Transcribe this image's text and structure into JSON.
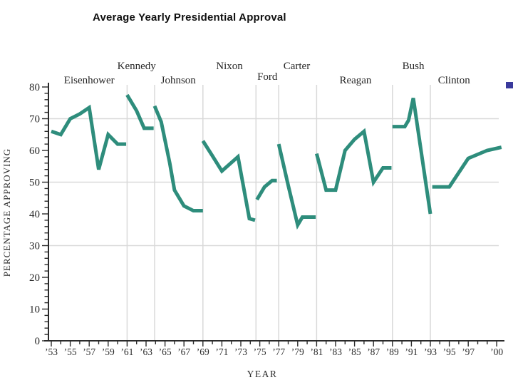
{
  "page": {
    "background": "#ffffff"
  },
  "decoration": {
    "bullet_color": "#3a3a9c"
  },
  "chart_data": {
    "type": "line",
    "title": "Average Yearly Presidential Approval",
    "xlabel": "YEAR",
    "ylabel": "PERCENTAGE APPROVING",
    "ylim": [
      0,
      80
    ],
    "xlim": [
      1953,
      2000.5
    ],
    "y_major_ticks": [
      0,
      10,
      20,
      30,
      40,
      50,
      60,
      70,
      80
    ],
    "y_minor_step": 2,
    "grid_on": true,
    "h_gridlines_at": [
      30,
      50,
      70
    ],
    "v_gridlines_at_years": [
      1961,
      1963.9,
      1969,
      1974.6,
      1977,
      1981,
      1989,
      1993
    ],
    "line_color": "#2e8d7c",
    "grid_color": "#d9d9d9",
    "axis_color": "#2a2a2a",
    "x_ticks": [
      {
        "label": "’53",
        "year": 1953
      },
      {
        "label": "’55",
        "year": 1955
      },
      {
        "label": "’57",
        "year": 1957
      },
      {
        "label": "’59",
        "year": 1959
      },
      {
        "label": "’61",
        "year": 1961
      },
      {
        "label": "’63",
        "year": 1963
      },
      {
        "label": "’65",
        "year": 1965
      },
      {
        "label": "’67",
        "year": 1967
      },
      {
        "label": "’69",
        "year": 1969
      },
      {
        "label": "’71",
        "year": 1971
      },
      {
        "label": "’73",
        "year": 1973
      },
      {
        "label": "’75",
        "year": 1975
      },
      {
        "label": "’77",
        "year": 1977
      },
      {
        "label": "’79",
        "year": 1979
      },
      {
        "label": "’81",
        "year": 1981
      },
      {
        "label": "’83",
        "year": 1983
      },
      {
        "label": "’85",
        "year": 1985
      },
      {
        "label": "’87",
        "year": 1987
      },
      {
        "label": "’89",
        "year": 1989
      },
      {
        "label": "’91",
        "year": 1991
      },
      {
        "label": "’93",
        "year": 1993
      },
      {
        "label": "’95",
        "year": 1995
      },
      {
        "label": "’97",
        "year": 1997
      },
      {
        "label": "’00",
        "year": 2000
      }
    ],
    "series": [
      {
        "name": "Eisenhower",
        "label_row": 2,
        "label_center_year": 1957,
        "label_dy": 0,
        "points": [
          [
            1953,
            66
          ],
          [
            1954,
            65
          ],
          [
            1955,
            70
          ],
          [
            1956,
            71.5
          ],
          [
            1957,
            73.5
          ],
          [
            1958,
            54
          ],
          [
            1959,
            65
          ],
          [
            1960,
            62
          ],
          [
            1960.9,
            62
          ]
        ]
      },
      {
        "name": "Kennedy",
        "label_row": 1,
        "label_center_year": 1962,
        "label_dy": 0,
        "points": [
          [
            1961,
            77.5
          ],
          [
            1962,
            72.5
          ],
          [
            1962.8,
            67
          ],
          [
            1963.8,
            67
          ]
        ]
      },
      {
        "name": "Johnson",
        "label_row": 2,
        "label_center_year": 1966.4,
        "label_dy": 0,
        "points": [
          [
            1963.9,
            74
          ],
          [
            1964.6,
            69
          ],
          [
            1965.5,
            56
          ],
          [
            1966,
            47.5
          ],
          [
            1967,
            42.5
          ],
          [
            1968,
            41
          ],
          [
            1969,
            41
          ]
        ]
      },
      {
        "name": "Nixon",
        "label_row": 1,
        "label_center_year": 1971.8,
        "label_dy": 0,
        "points": [
          [
            1969,
            63
          ],
          [
            1970,
            58.3
          ],
          [
            1971,
            53.5
          ],
          [
            1972.7,
            58
          ],
          [
            1973.9,
            38.5
          ],
          [
            1974.5,
            38
          ]
        ]
      },
      {
        "name": "Ford",
        "label_row": 2,
        "label_center_year": 1975.8,
        "label_dy": -5,
        "points": [
          [
            1974.7,
            44.5
          ],
          [
            1975.5,
            48.5
          ],
          [
            1976.3,
            50.5
          ],
          [
            1976.8,
            50.5
          ]
        ]
      },
      {
        "name": "Carter",
        "label_row": 1,
        "label_center_year": 1978.9,
        "label_dy": 0,
        "points": [
          [
            1977,
            62
          ],
          [
            1978,
            49
          ],
          [
            1979,
            36.5
          ],
          [
            1979.5,
            39
          ],
          [
            1980.9,
            39
          ]
        ]
      },
      {
        "name": "Reagan",
        "label_row": 2,
        "label_center_year": 1985.1,
        "label_dy": 0,
        "points": [
          [
            1981,
            59
          ],
          [
            1982,
            47.5
          ],
          [
            1983,
            47.5
          ],
          [
            1984,
            60
          ],
          [
            1985,
            63.5
          ],
          [
            1986,
            66
          ],
          [
            1987,
            50
          ],
          [
            1988,
            54.5
          ],
          [
            1988.9,
            54.5
          ]
        ]
      },
      {
        "name": "Bush",
        "label_row": 1,
        "label_center_year": 1991.2,
        "label_dy": 0,
        "points": [
          [
            1989,
            67.5
          ],
          [
            1990.3,
            67.5
          ],
          [
            1990.7,
            69.5
          ],
          [
            1991.2,
            76.5
          ],
          [
            1993,
            40
          ]
        ]
      },
      {
        "name": "Clinton",
        "label_row": 2,
        "label_center_year": 1995.5,
        "label_dy": 0,
        "points": [
          [
            1993.2,
            48.5
          ],
          [
            1995,
            48.5
          ],
          [
            1997,
            57.5
          ],
          [
            1999,
            60
          ],
          [
            2000.5,
            61
          ]
        ]
      }
    ]
  }
}
